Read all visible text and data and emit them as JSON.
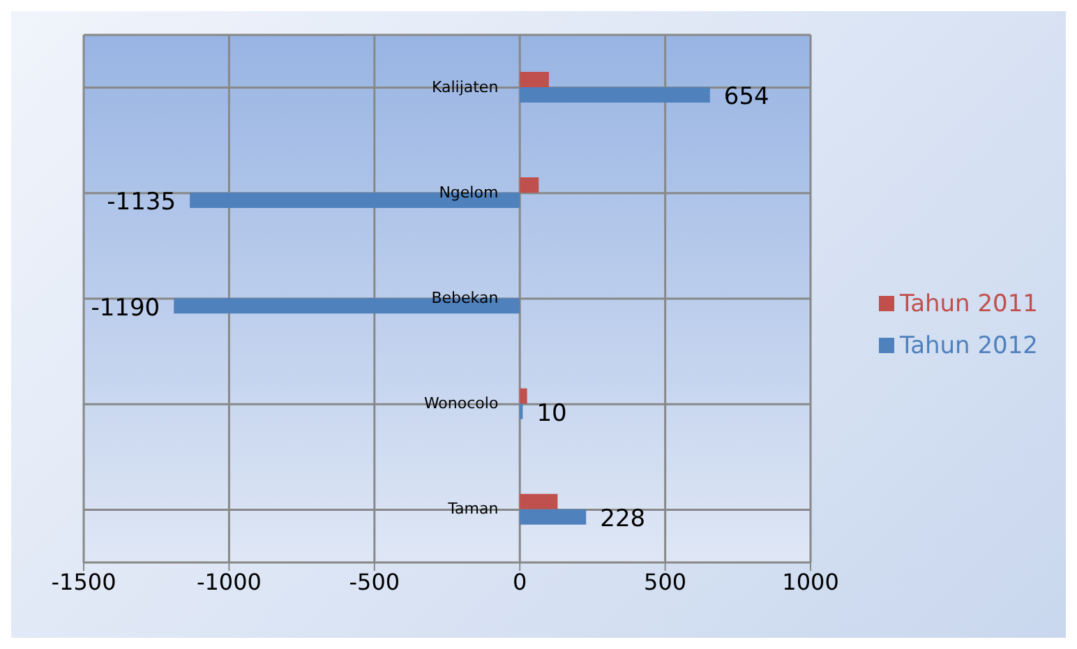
{
  "chart_data": {
    "type": "bar",
    "orientation": "horizontal",
    "categories": [
      "Kalijaten",
      "Ngelom",
      "Bebekan",
      "Wonocolo",
      "Taman"
    ],
    "series": [
      {
        "name": "Tahun 2011",
        "color": "#c0504d",
        "values": [
          100,
          65,
          0,
          25,
          130
        ]
      },
      {
        "name": "Tahun 2012",
        "color": "#4f81bd",
        "values": [
          654,
          -1135,
          -1190,
          10,
          228
        ],
        "value_labels": [
          "654",
          "-1135",
          "-1190",
          "10",
          "228"
        ]
      }
    ],
    "xlim": [
      -1500,
      1000
    ],
    "xticks": [
      -1500,
      -1000,
      -500,
      0,
      500,
      1000
    ],
    "grid": true,
    "legend": "right"
  }
}
